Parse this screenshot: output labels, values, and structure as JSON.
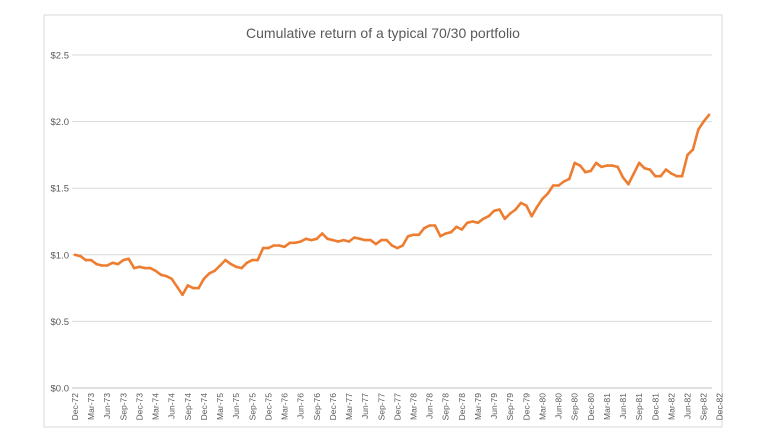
{
  "chart_data": {
    "type": "line",
    "title": "Cumulative return of a typical 70/30 portfolio",
    "xlabel": "",
    "ylabel": "",
    "ylim": [
      0,
      2.5
    ],
    "y_ticks": [
      "$0.0",
      "$0.5",
      "$1.0",
      "$1.5",
      "$2.0",
      "$2.5"
    ],
    "y_tick_values": [
      0,
      0.5,
      1.0,
      1.5,
      2.0,
      2.5
    ],
    "grid": true,
    "legend": "none",
    "x_tick_labels": [
      "Dec-72",
      "Mar-73",
      "Jun-73",
      "Sep-73",
      "Dec-73",
      "Mar-74",
      "Jun-74",
      "Sep-74",
      "Dec-74",
      "Mar-75",
      "Jun-75",
      "Sep-75",
      "Dec-75",
      "Mar-76",
      "Jun-76",
      "Sep-76",
      "Dec-76",
      "Mar-77",
      "Jun-77",
      "Sep-77",
      "Dec-77",
      "Mar-78",
      "Jun-78",
      "Sep-78",
      "Dec-78",
      "Mar-79",
      "Jun-79",
      "Sep-79",
      "Dec-79",
      "Mar-80",
      "Jun-80",
      "Sep-80",
      "Dec-80",
      "Mar-81",
      "Jun-81",
      "Sep-81",
      "Dec-81",
      "Mar-82",
      "Jun-82",
      "Sep-82",
      "Dec-82"
    ],
    "series": [
      {
        "color": "#ED7D31",
        "values": [
          1.0,
          0.99,
          0.96,
          0.96,
          0.93,
          0.92,
          0.92,
          0.94,
          0.93,
          0.96,
          0.97,
          0.9,
          0.91,
          0.9,
          0.9,
          0.88,
          0.85,
          0.84,
          0.82,
          0.76,
          0.7,
          0.77,
          0.75,
          0.75,
          0.82,
          0.86,
          0.88,
          0.92,
          0.96,
          0.93,
          0.91,
          0.9,
          0.94,
          0.96,
          0.96,
          1.05,
          1.05,
          1.07,
          1.07,
          1.06,
          1.09,
          1.09,
          1.1,
          1.12,
          1.11,
          1.12,
          1.16,
          1.12,
          1.11,
          1.1,
          1.11,
          1.1,
          1.13,
          1.12,
          1.11,
          1.11,
          1.08,
          1.11,
          1.11,
          1.07,
          1.05,
          1.07,
          1.14,
          1.15,
          1.15,
          1.2,
          1.22,
          1.22,
          1.14,
          1.16,
          1.17,
          1.21,
          1.19,
          1.24,
          1.25,
          1.24,
          1.27,
          1.29,
          1.33,
          1.34,
          1.27,
          1.31,
          1.34,
          1.39,
          1.37,
          1.29,
          1.36,
          1.42,
          1.46,
          1.52,
          1.52,
          1.55,
          1.57,
          1.69,
          1.67,
          1.62,
          1.63,
          1.69,
          1.66,
          1.67,
          1.67,
          1.66,
          1.58,
          1.53,
          1.61,
          1.69,
          1.65,
          1.64,
          1.59,
          1.59,
          1.64,
          1.61,
          1.59,
          1.59,
          1.75,
          1.79,
          1.94,
          2.0,
          2.05
        ]
      }
    ]
  }
}
